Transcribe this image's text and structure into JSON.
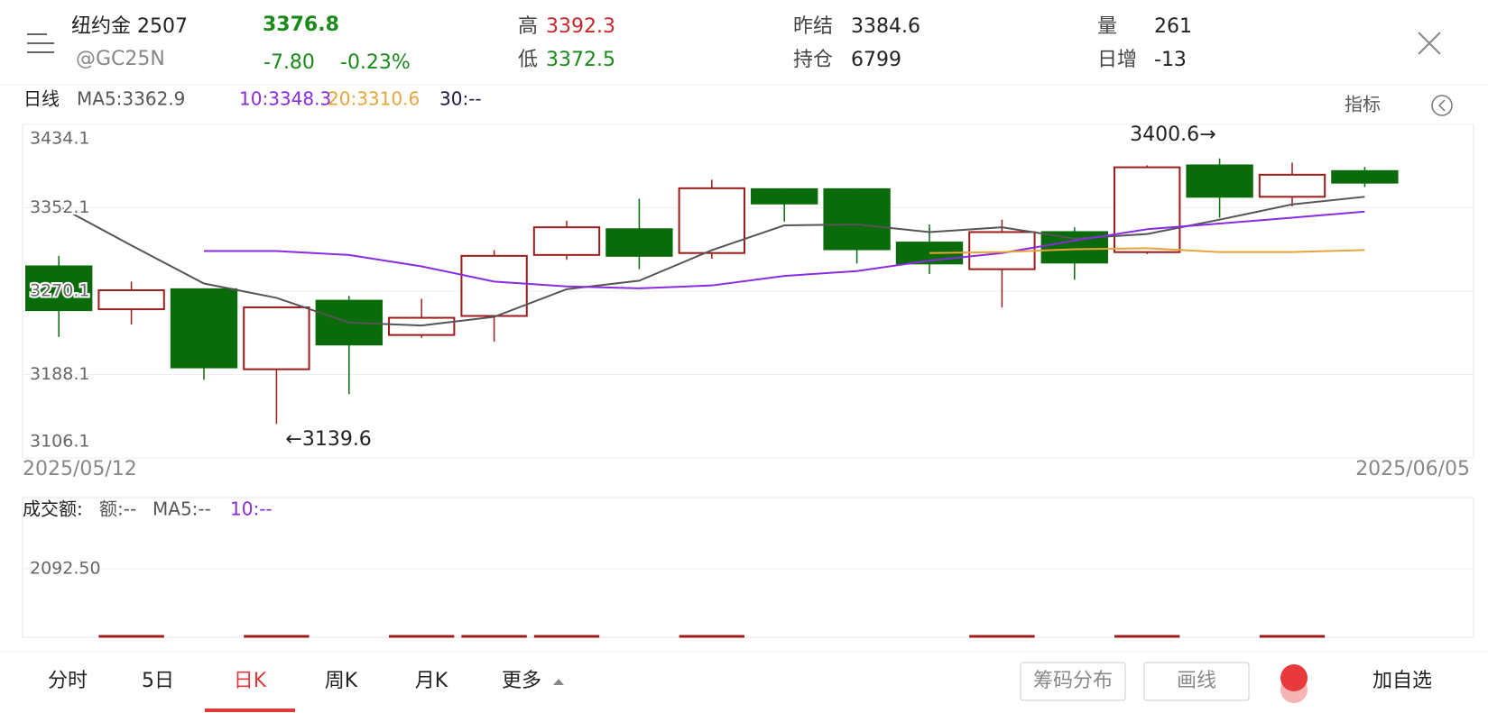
{
  "header": {
    "name": "纽约金 2507",
    "code": "@GC25N",
    "price": "3376.8",
    "change": "-7.80",
    "change_pct": "-0.23%",
    "high_label": "高",
    "high": "3392.3",
    "low_label": "低",
    "low": "3372.5",
    "settle_label": "昨结",
    "settle": "3384.6",
    "oi_label": "持仓",
    "oi": "6799",
    "vol_label": "量",
    "vol": "261",
    "daily_label": "日增",
    "daily": "-13"
  },
  "chart_data": {
    "type": "candlestick",
    "period": "日线",
    "indicator_button": "指标",
    "categories": [
      "2025/05/12",
      null,
      null,
      null,
      null,
      null,
      null,
      null,
      null,
      null,
      null,
      null,
      null,
      null,
      null,
      null,
      null,
      null,
      "2025/06/05"
    ],
    "open": [
      3294.5,
      3252.3,
      3272.0,
      3193.3,
      3260.7,
      3227.0,
      3245.7,
      3305.7,
      3331.0,
      3307.6,
      3370.4,
      3370.4,
      3317.9,
      3291.7,
      3328.2,
      3308.5,
      3393.8,
      3362.9,
      3388.2
    ],
    "high": [
      3304.8,
      3279.5,
      3272.9,
      3255.1,
      3265.4,
      3262.6,
      3310.4,
      3339.4,
      3361.0,
      3379.7,
      3371.3,
      3371.3,
      3335.7,
      3340.4,
      3332.9,
      3393.8,
      3400.6,
      3396.6,
      3392.3
    ],
    "low": [
      3225.1,
      3237.3,
      3182.9,
      3139.6,
      3168.9,
      3224.2,
      3220.4,
      3301.0,
      3291.7,
      3302.0,
      3338.5,
      3297.3,
      3287.0,
      3254.2,
      3281.3,
      3306.6,
      3342.3,
      3353.5,
      3372.5
    ],
    "close": [
      3251.4,
      3271.0,
      3195.1,
      3254.2,
      3217.6,
      3243.9,
      3304.8,
      3332.9,
      3304.8,
      3371.3,
      3356.3,
      3311.3,
      3297.3,
      3328.2,
      3298.2,
      3391.9,
      3362.9,
      3384.6,
      3376.8
    ],
    "up_color": "#9c1c1c",
    "down_color": "#0a6b0a",
    "series": [
      {
        "name": "MA5:3362.9",
        "color": "#555555",
        "values": [
          3353.5,
          3315.1,
          3277.6,
          3263.5,
          3239.2,
          3236.3,
          3244.8,
          3272.0,
          3280.4,
          3310.4,
          3334.8,
          3335.7,
          3328.2,
          3332.9,
          3321.7,
          3326.3,
          3340.4,
          3355.4,
          3362.9
        ]
      },
      {
        "name": "10:3348.3",
        "color": "#8a2be2",
        "values": [
          null,
          null,
          3309.5,
          3309.5,
          3305.7,
          3294.5,
          3279.5,
          3274.8,
          3272.9,
          3275.7,
          3285.1,
          3289.8,
          3300.1,
          3307.6,
          3319.8,
          3331.0,
          3336.6,
          3342.3,
          3348.3
        ]
      },
      {
        "name": "20:3310.6",
        "color": "#e8a53a",
        "values": [
          null,
          null,
          null,
          null,
          null,
          null,
          null,
          null,
          null,
          null,
          null,
          null,
          3307.6,
          3308.5,
          3311.3,
          3312.3,
          3308.5,
          3308.5,
          3310.6
        ]
      },
      {
        "name": "30:--",
        "color": "#1a1a3a",
        "values": [
          null,
          null,
          null,
          null,
          null,
          null,
          null,
          null,
          null,
          null,
          null,
          null,
          null,
          null,
          null,
          null,
          null,
          null,
          null
        ]
      }
    ],
    "ylim": [
      3106.1,
      3434.1
    ],
    "yticks": [
      3106.1,
      3188.1,
      3270.1,
      3352.1,
      3434.1
    ],
    "grid": true,
    "annotations": [
      "←3139.6",
      "3400.6→"
    ],
    "volume_panel": {
      "title": "成交额:",
      "legend": [
        {
          "name": "额:--",
          "color": "#555555"
        },
        {
          "name": "MA5:--",
          "color": "#555555"
        },
        {
          "name": "10:--",
          "color": "#8a2be2"
        }
      ],
      "yticks": [
        {
          "value": 2092.5,
          "label": "2092.50"
        }
      ]
    }
  },
  "toolbar": {
    "tabs": [
      "分时",
      "5日",
      "日K",
      "周K",
      "月K",
      "更多"
    ],
    "active": 2,
    "buttons": [
      "筹码分布",
      "画线"
    ],
    "add": "加自选"
  }
}
